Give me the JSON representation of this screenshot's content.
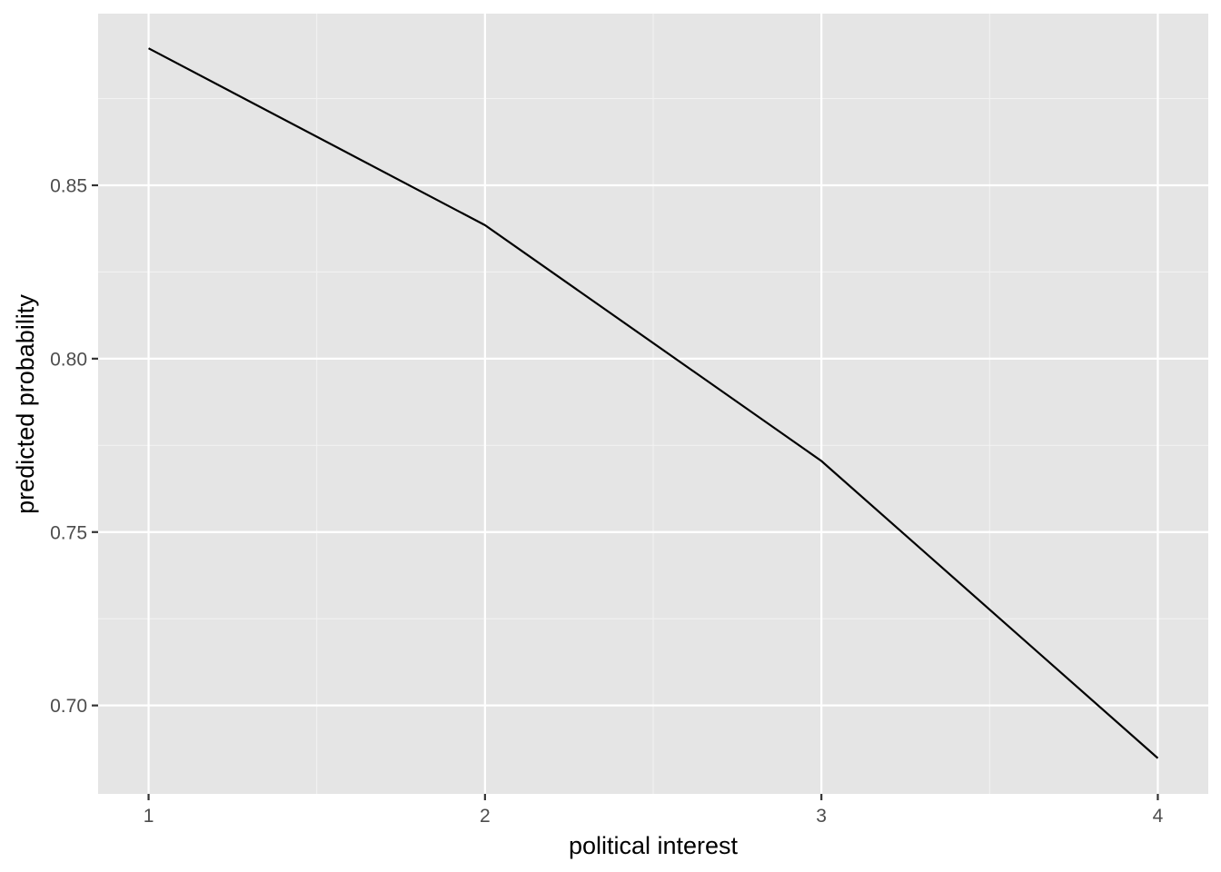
{
  "chart_data": {
    "type": "line",
    "title": "",
    "xlabel": "political interest",
    "ylabel": "predicted probability",
    "x": [
      1,
      2,
      3,
      4
    ],
    "series": [
      {
        "values": [
          0.8895,
          0.8385,
          0.7705,
          0.6848
        ]
      }
    ],
    "xlim": [
      0.85,
      4.15
    ],
    "ylim": [
      0.6745,
      0.8995
    ],
    "x_ticks": [
      1,
      2,
      3,
      4
    ],
    "x_tick_labels": [
      "1",
      "2",
      "3",
      "4"
    ],
    "y_ticks": [
      0.7,
      0.75,
      0.8,
      0.85
    ],
    "y_tick_labels": [
      "0.70",
      "0.75",
      "0.80",
      "0.85"
    ],
    "x_minor_ticks": [
      1.5,
      2.5,
      3.5
    ],
    "y_minor_ticks": [
      0.725,
      0.775,
      0.825,
      0.875
    ],
    "grid": true,
    "legend": "none",
    "colors": {
      "panel_background": "#e5e5e5",
      "grid_major": "#ffffff",
      "grid_minor": "#f2f2f2",
      "line": "#000000",
      "tick_text": "#4d4d4d",
      "axis_title_text": "#000000",
      "tick_mark": "#333333"
    }
  }
}
